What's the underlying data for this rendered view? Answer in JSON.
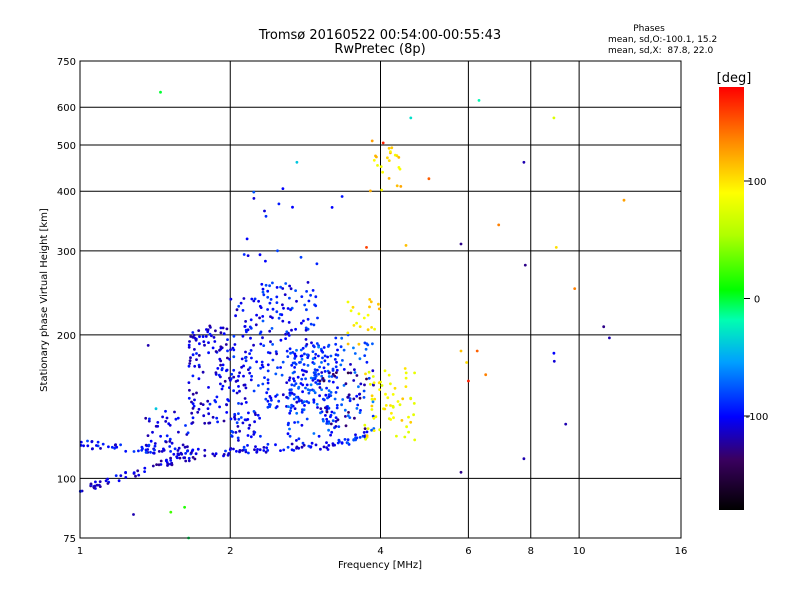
{
  "chart_data": {
    "type": "scatter",
    "title": "Tromsø 20160522 00:54:00-00:55:43",
    "subtitle": "RwPretec (8p)",
    "xlabel": "Frequency [MHz]",
    "ylabel": "Stationary phase Virtual Height [km]",
    "x_scale": "log",
    "y_scale": "log",
    "xlim": [
      1,
      16
    ],
    "ylim": [
      75,
      750
    ],
    "xticks": [
      "1",
      "2",
      "4",
      "6",
      "8",
      "10",
      "16"
    ],
    "yticks": [
      "75",
      "100",
      "200",
      "300",
      "400",
      "500",
      "600",
      "750"
    ],
    "grid": true,
    "stats": {
      "heading": "Phases",
      "line1": "mean, sd,O:-100.1, 15.2",
      "line2": "mean, sd,X:  87.8, 22.0"
    },
    "colorbar": {
      "label": "[deg]",
      "ticks": [
        "100",
        "0",
        "-100"
      ],
      "range": [
        -180,
        180
      ]
    },
    "traces": [
      {
        "x_range": [
          1.0,
          2.0
        ],
        "y_range": [
          118,
          112
        ],
        "phase": -100,
        "count": 70
      },
      {
        "x_range": [
          2.0,
          3.3
        ],
        "y_range": [
          115,
          117
        ],
        "phase": -100,
        "count": 55
      },
      {
        "x_range": [
          3.3,
          3.9
        ],
        "y_range": [
          118,
          126
        ],
        "phase": -90,
        "count": 25
      },
      {
        "x_range": [
          1.0,
          1.7
        ],
        "y_range": [
          95,
          112
        ],
        "phase": -110,
        "count": 60
      },
      {
        "x_range": [
          1.35,
          1.65
        ],
        "y_range": [
          112,
          140
        ],
        "phase": -105,
        "count": 40
      },
      {
        "x_range": [
          1.65,
          2.0
        ],
        "y_range": [
          130,
          210
        ],
        "phase": -108,
        "count": 120
      },
      {
        "x_range": [
          2.0,
          2.3
        ],
        "y_range": [
          120,
          240
        ],
        "phase": -100,
        "count": 110
      },
      {
        "x_range": [
          2.3,
          3.0
        ],
        "y_range": [
          140,
          260
        ],
        "phase": -95,
        "count": 170
      },
      {
        "x_range": [
          2.6,
          3.3
        ],
        "y_range": [
          120,
          190
        ],
        "phase": -85,
        "count": 140
      },
      {
        "x_range": [
          3.0,
          3.9
        ],
        "y_range": [
          130,
          200
        ],
        "phase": -80,
        "count": 70
      },
      {
        "x_range": [
          3.0,
          3.9
        ],
        "y_range": [
          125,
          175
        ],
        "phase": -130,
        "count": 40
      },
      {
        "x_range": [
          3.7,
          4.7
        ],
        "y_range": [
          120,
          170
        ],
        "phase": 100,
        "count": 60
      },
      {
        "x_range": [
          3.4,
          4.0
        ],
        "y_range": [
          190,
          240
        ],
        "phase": 105,
        "count": 20
      },
      {
        "x_range": [
          3.8,
          4.5
        ],
        "y_range": [
          400,
          500
        ],
        "phase": 110,
        "count": 22
      },
      {
        "x_range": [
          2.1,
          3.0
        ],
        "y_range": [
          270,
          410
        ],
        "phase": -95,
        "count": 14
      }
    ],
    "scattered_points": [
      {
        "x": 1.45,
        "y": 645,
        "phase": -5
      },
      {
        "x": 1.37,
        "y": 190,
        "phase": -120
      },
      {
        "x": 1.42,
        "y": 140,
        "phase": -40
      },
      {
        "x": 1.52,
        "y": 85,
        "phase": 20
      },
      {
        "x": 1.62,
        "y": 87,
        "phase": 10
      },
      {
        "x": 1.65,
        "y": 75,
        "phase": -10
      },
      {
        "x": 1.28,
        "y": 84,
        "phase": -120
      },
      {
        "x": 2.55,
        "y": 405,
        "phase": -100
      },
      {
        "x": 2.72,
        "y": 460,
        "phase": -40
      },
      {
        "x": 3.2,
        "y": 370,
        "phase": -100
      },
      {
        "x": 3.35,
        "y": 390,
        "phase": -95
      },
      {
        "x": 3.75,
        "y": 305,
        "phase": 160
      },
      {
        "x": 3.85,
        "y": 510,
        "phase": 130
      },
      {
        "x": 4.05,
        "y": 505,
        "phase": 170
      },
      {
        "x": 4.6,
        "y": 570,
        "phase": -30
      },
      {
        "x": 4.5,
        "y": 308,
        "phase": 120
      },
      {
        "x": 5.0,
        "y": 425,
        "phase": 150
      },
      {
        "x": 5.8,
        "y": 310,
        "phase": -130
      },
      {
        "x": 5.8,
        "y": 185,
        "phase": 120
      },
      {
        "x": 5.8,
        "y": 103,
        "phase": -130
      },
      {
        "x": 5.95,
        "y": 175,
        "phase": 110
      },
      {
        "x": 6.0,
        "y": 160,
        "phase": 170
      },
      {
        "x": 6.25,
        "y": 185,
        "phase": 150
      },
      {
        "x": 6.3,
        "y": 620,
        "phase": -20
      },
      {
        "x": 6.5,
        "y": 165,
        "phase": 140
      },
      {
        "x": 6.9,
        "y": 340,
        "phase": 140
      },
      {
        "x": 7.75,
        "y": 460,
        "phase": -120
      },
      {
        "x": 7.8,
        "y": 280,
        "phase": -130
      },
      {
        "x": 7.75,
        "y": 110,
        "phase": -120
      },
      {
        "x": 8.9,
        "y": 570,
        "phase": 80
      },
      {
        "x": 9.0,
        "y": 305,
        "phase": 110
      },
      {
        "x": 8.9,
        "y": 183,
        "phase": -100
      },
      {
        "x": 8.92,
        "y": 176,
        "phase": -110
      },
      {
        "x": 9.4,
        "y": 130,
        "phase": -120
      },
      {
        "x": 9.8,
        "y": 250,
        "phase": 140
      },
      {
        "x": 11.2,
        "y": 208,
        "phase": -130
      },
      {
        "x": 11.5,
        "y": 197,
        "phase": -120
      },
      {
        "x": 12.3,
        "y": 383,
        "phase": 130
      }
    ]
  }
}
